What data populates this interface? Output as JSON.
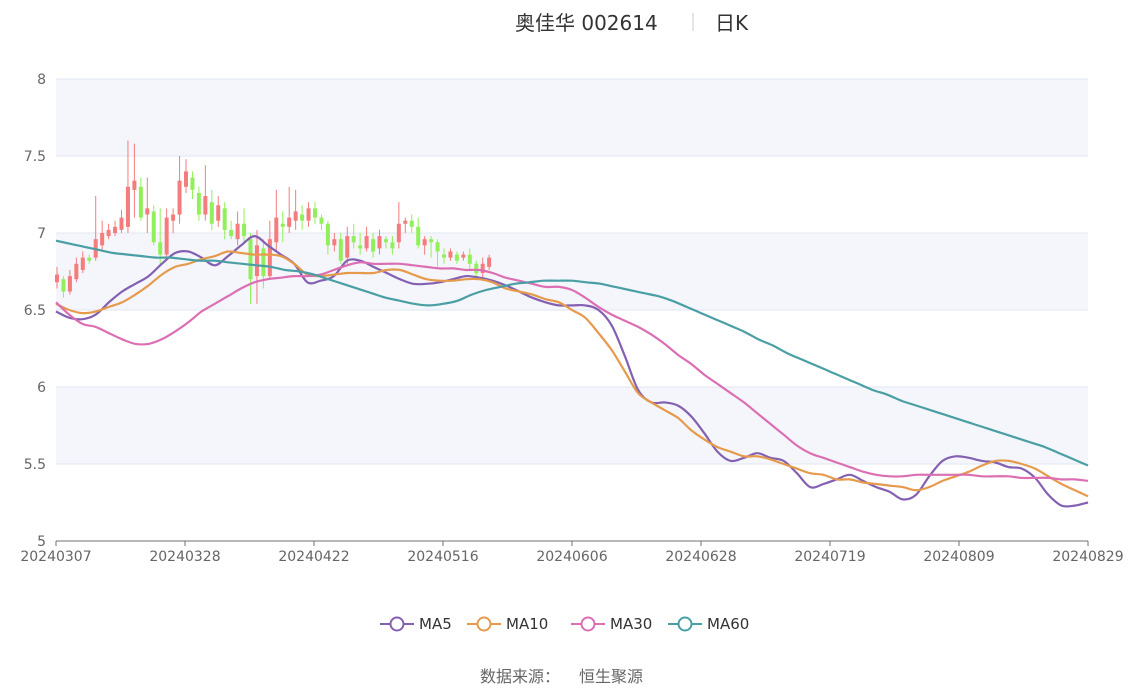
{
  "header": {
    "title": "奥佳华 002614",
    "period": "日K"
  },
  "footer": {
    "source_label": "数据来源：",
    "source_value": "恒生聚源"
  },
  "colors": {
    "up": "#f47c7c",
    "down": "#91f05a",
    "ma5": "#8460b2",
    "ma10": "#e69a4c",
    "ma30": "#dc6fb3",
    "ma60": "#4a9fa4",
    "band": "#f4f6fb",
    "grid": "#e0e6f1"
  },
  "chart_data": {
    "type": "candlestick",
    "title": "奥佳华 002614 日K",
    "ylim": [
      5,
      8
    ],
    "yticks": [
      "5",
      "5.5",
      "6",
      "6.5",
      "7",
      "7.5",
      "8"
    ],
    "xticks": [
      "20240307",
      "20240328",
      "20240422",
      "20240516",
      "20240606",
      "20240628",
      "20240719",
      "20240809",
      "20240829"
    ],
    "legend_position": "bottom-center",
    "series": [
      {
        "name": "MA5",
        "color": "#8460b2",
        "values": [
          6.49,
          6.45,
          6.44,
          6.47,
          6.55,
          6.62,
          6.67,
          6.72,
          6.8,
          6.87,
          6.88,
          6.84,
          6.79,
          6.85,
          6.92,
          6.98,
          6.92,
          6.86,
          6.8,
          6.68,
          6.69,
          6.72,
          6.82,
          6.82,
          6.78,
          6.74,
          6.7,
          6.67,
          6.67,
          6.68,
          6.7,
          6.72,
          6.71,
          6.69,
          6.66,
          6.62,
          6.58,
          6.55,
          6.53,
          6.53,
          6.53,
          6.5,
          6.4,
          6.2,
          5.98,
          5.9,
          5.9,
          5.88,
          5.81,
          5.7,
          5.58,
          5.52,
          5.54,
          5.57,
          5.54,
          5.52,
          5.44,
          5.35,
          5.37,
          5.4,
          5.43,
          5.39,
          5.35,
          5.32,
          5.27,
          5.3,
          5.42,
          5.52,
          5.55,
          5.54,
          5.52,
          5.51,
          5.48,
          5.47,
          5.41,
          5.3,
          5.23,
          5.23,
          5.25
        ]
      },
      {
        "name": "MA10",
        "color": "#e69a4c",
        "values": [
          6.54,
          6.5,
          6.48,
          6.49,
          6.52,
          6.55,
          6.6,
          6.66,
          6.73,
          6.78,
          6.8,
          6.83,
          6.85,
          6.88,
          6.87,
          6.86,
          6.86,
          6.85,
          6.8,
          6.73,
          6.72,
          6.73,
          6.74,
          6.74,
          6.74,
          6.76,
          6.76,
          6.73,
          6.7,
          6.69,
          6.69,
          6.7,
          6.7,
          6.68,
          6.64,
          6.62,
          6.6,
          6.57,
          6.55,
          6.5,
          6.45,
          6.35,
          6.24,
          6.1,
          5.96,
          5.9,
          5.85,
          5.8,
          5.72,
          5.66,
          5.61,
          5.58,
          5.55,
          5.55,
          5.53,
          5.5,
          5.47,
          5.44,
          5.43,
          5.4,
          5.4,
          5.38,
          5.37,
          5.36,
          5.35,
          5.33,
          5.35,
          5.39,
          5.42,
          5.45,
          5.49,
          5.52,
          5.52,
          5.5,
          5.47,
          5.42,
          5.37,
          5.33,
          5.29
        ]
      },
      {
        "name": "MA30",
        "color": "#dc6fb3",
        "values": [
          6.55,
          6.47,
          6.41,
          6.39,
          6.35,
          6.31,
          6.28,
          6.28,
          6.31,
          6.36,
          6.42,
          6.49,
          6.54,
          6.59,
          6.64,
          6.68,
          6.7,
          6.71,
          6.72,
          6.72,
          6.73,
          6.76,
          6.79,
          6.81,
          6.8,
          6.8,
          6.8,
          6.79,
          6.78,
          6.77,
          6.77,
          6.76,
          6.76,
          6.74,
          6.71,
          6.69,
          6.67,
          6.65,
          6.65,
          6.63,
          6.58,
          6.52,
          6.47,
          6.43,
          6.39,
          6.34,
          6.28,
          6.21,
          6.15,
          6.08,
          6.02,
          5.96,
          5.9,
          5.83,
          5.76,
          5.69,
          5.62,
          5.57,
          5.54,
          5.51,
          5.48,
          5.45,
          5.43,
          5.42,
          5.42,
          5.43,
          5.43,
          5.43,
          5.43,
          5.43,
          5.42,
          5.42,
          5.42,
          5.41,
          5.41,
          5.41,
          5.4,
          5.4,
          5.39
        ]
      },
      {
        "name": "MA60",
        "color": "#4a9fa4",
        "values": [
          6.95,
          6.93,
          6.91,
          6.89,
          6.87,
          6.86,
          6.85,
          6.84,
          6.84,
          6.83,
          6.82,
          6.82,
          6.81,
          6.8,
          6.79,
          6.78,
          6.76,
          6.75,
          6.73,
          6.7,
          6.67,
          6.64,
          6.61,
          6.58,
          6.56,
          6.54,
          6.53,
          6.54,
          6.56,
          6.6,
          6.63,
          6.65,
          6.67,
          6.68,
          6.69,
          6.69,
          6.69,
          6.68,
          6.67,
          6.65,
          6.63,
          6.61,
          6.59,
          6.56,
          6.52,
          6.48,
          6.44,
          6.4,
          6.36,
          6.31,
          6.27,
          6.22,
          6.18,
          6.14,
          6.1,
          6.06,
          6.02,
          5.98,
          5.95,
          5.91,
          5.88,
          5.85,
          5.82,
          5.79,
          5.76,
          5.73,
          5.7,
          5.67,
          5.64,
          5.61,
          5.57,
          5.53,
          5.49
        ]
      }
    ],
    "candles": [
      [
        6.68,
        6.73,
        6.64,
        6.78
      ],
      [
        6.7,
        6.62,
        6.58,
        6.72
      ],
      [
        6.62,
        6.72,
        6.6,
        6.76
      ],
      [
        6.7,
        6.8,
        6.68,
        6.84
      ],
      [
        6.76,
        6.84,
        6.74,
        6.88
      ],
      [
        6.84,
        6.82,
        6.8,
        6.86
      ],
      [
        6.84,
        6.96,
        6.82,
        7.24
      ],
      [
        6.92,
        7.0,
        6.88,
        7.08
      ],
      [
        6.98,
        7.02,
        6.96,
        7.06
      ],
      [
        7.0,
        7.04,
        6.98,
        7.08
      ],
      [
        7.02,
        7.1,
        7.0,
        7.15
      ],
      [
        7.04,
        7.3,
        7.0,
        7.6
      ],
      [
        7.28,
        7.34,
        7.1,
        7.58
      ],
      [
        7.3,
        7.1,
        7.08,
        7.36
      ],
      [
        7.12,
        7.16,
        7.0,
        7.36
      ],
      [
        7.14,
        6.94,
        6.92,
        7.18
      ],
      [
        6.94,
        6.86,
        6.8,
        7.16
      ],
      [
        6.86,
        7.1,
        6.84,
        7.16
      ],
      [
        7.08,
        7.12,
        7.0,
        7.16
      ],
      [
        7.12,
        7.34,
        7.06,
        7.5
      ],
      [
        7.3,
        7.4,
        7.26,
        7.48
      ],
      [
        7.36,
        7.28,
        7.22,
        7.4
      ],
      [
        7.26,
        7.12,
        7.08,
        7.3
      ],
      [
        7.12,
        7.24,
        7.08,
        7.44
      ],
      [
        7.2,
        7.06,
        7.02,
        7.28
      ],
      [
        7.08,
        7.18,
        7.04,
        7.24
      ],
      [
        7.16,
        7.02,
        6.96,
        7.2
      ],
      [
        7.02,
        6.98,
        6.96,
        7.08
      ],
      [
        6.96,
        7.06,
        6.92,
        7.14
      ],
      [
        7.06,
        6.98,
        6.94,
        7.16
      ],
      [
        6.96,
        6.7,
        6.54,
        7.0
      ],
      [
        6.72,
        6.92,
        6.54,
        7.02
      ],
      [
        6.9,
        6.72,
        6.64,
        6.96
      ],
      [
        6.72,
        6.96,
        6.7,
        7.08
      ],
      [
        6.94,
        7.1,
        6.88,
        7.28
      ],
      [
        7.06,
        7.04,
        6.94,
        7.14
      ],
      [
        7.04,
        7.1,
        7.0,
        7.3
      ],
      [
        7.08,
        7.14,
        7.02,
        7.28
      ],
      [
        7.12,
        7.08,
        7.02,
        7.18
      ],
      [
        7.08,
        7.16,
        7.04,
        7.2
      ],
      [
        7.16,
        7.1,
        7.06,
        7.2
      ],
      [
        7.1,
        7.06,
        7.02,
        7.12
      ],
      [
        7.06,
        6.92,
        6.86,
        7.08
      ],
      [
        6.92,
        6.96,
        6.88,
        7.0
      ],
      [
        6.96,
        6.82,
        6.8,
        7.0
      ],
      [
        6.84,
        6.98,
        6.8,
        7.04
      ],
      [
        6.98,
        6.94,
        6.9,
        7.06
      ],
      [
        6.92,
        6.9,
        6.86,
        7.0
      ],
      [
        6.9,
        6.98,
        6.88,
        7.04
      ],
      [
        6.96,
        6.88,
        6.84,
        7.0
      ],
      [
        6.9,
        6.98,
        6.86,
        7.02
      ],
      [
        6.96,
        6.94,
        6.9,
        6.98
      ],
      [
        6.94,
        6.9,
        6.86,
        6.98
      ],
      [
        6.94,
        7.06,
        6.9,
        7.2
      ],
      [
        7.06,
        7.08,
        7.0,
        7.1
      ],
      [
        7.08,
        7.04,
        7.0,
        7.12
      ],
      [
        7.04,
        6.92,
        6.9,
        7.1
      ],
      [
        6.92,
        6.96,
        6.86,
        6.98
      ],
      [
        6.96,
        6.94,
        6.84,
        6.98
      ],
      [
        6.94,
        6.88,
        6.78,
        6.96
      ],
      [
        6.86,
        6.84,
        6.8,
        6.9
      ],
      [
        6.84,
        6.88,
        6.82,
        6.9
      ],
      [
        6.86,
        6.82,
        6.8,
        6.88
      ],
      [
        6.84,
        6.86,
        6.82,
        6.88
      ],
      [
        6.86,
        6.8,
        6.76,
        6.9
      ],
      [
        6.8,
        6.74,
        6.72,
        6.82
      ],
      [
        6.74,
        6.8,
        6.7,
        6.84
      ],
      [
        6.78,
        6.84,
        6.76,
        6.86
      ]
    ]
  },
  "legend": {
    "items": [
      "MA5",
      "MA10",
      "MA30",
      "MA60"
    ]
  }
}
